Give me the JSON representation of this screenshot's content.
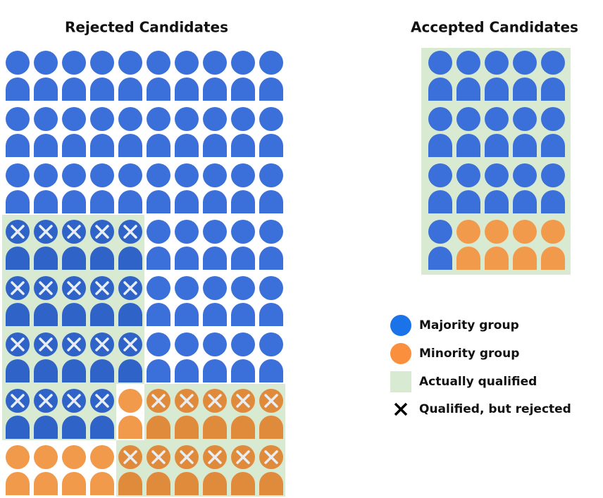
{
  "panels": {
    "rejected": {
      "title": "Rejected Candidates"
    },
    "accepted": {
      "title": "Accepted Candidates"
    }
  },
  "legend": {
    "items": [
      {
        "label": "Majority group"
      },
      {
        "label": "Minority group"
      },
      {
        "label": "Actually qualified"
      },
      {
        "label": "Qualified, but rejected"
      }
    ]
  }
}
